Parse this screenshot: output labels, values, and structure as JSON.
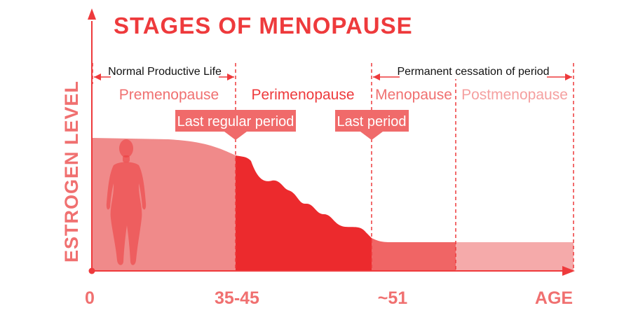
{
  "title": "STAGES OF MENOPAUSE",
  "y_axis_label": "ESTROGEN LEVEL",
  "x_ticks": [
    "0",
    "35-45",
    "~51",
    "AGE"
  ],
  "spans": {
    "normal_life": "Normal Productive Life",
    "cessation": "Permanent cessation of period"
  },
  "stages": [
    "Premenopause",
    "Perimenopause",
    "Menopause",
    "Postmenopause"
  ],
  "callouts": {
    "last_regular": "Last regular period",
    "last_period": "Last period"
  },
  "colors": {
    "accent": "#ee3a3c",
    "premenopause": "#f08a8a",
    "perimenopause": "#ec2a2d",
    "menopause": "#f06565",
    "postmenopause": "#f5aaaa",
    "label_light": "#f07070",
    "label_lighter": "#f5a0a0",
    "text_dark": "#111111"
  }
}
